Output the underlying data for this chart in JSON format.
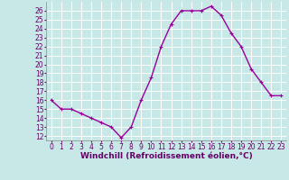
{
  "x": [
    0,
    1,
    2,
    3,
    4,
    5,
    6,
    7,
    8,
    9,
    10,
    11,
    12,
    13,
    14,
    15,
    16,
    17,
    18,
    19,
    20,
    21,
    22,
    23
  ],
  "y": [
    16.0,
    15.0,
    15.0,
    14.5,
    14.0,
    13.5,
    13.0,
    11.8,
    13.0,
    16.0,
    18.5,
    22.0,
    24.5,
    26.0,
    26.0,
    26.0,
    26.5,
    25.5,
    23.5,
    22.0,
    19.5,
    18.0,
    16.5,
    16.5
  ],
  "line_color": "#990099",
  "marker": "+",
  "marker_size": 3,
  "xlim": [
    -0.5,
    23.5
  ],
  "ylim": [
    11.5,
    27
  ],
  "yticks": [
    12,
    13,
    14,
    15,
    16,
    17,
    18,
    19,
    20,
    21,
    22,
    23,
    24,
    25,
    26
  ],
  "xticks": [
    0,
    1,
    2,
    3,
    4,
    5,
    6,
    7,
    8,
    9,
    10,
    11,
    12,
    13,
    14,
    15,
    16,
    17,
    18,
    19,
    20,
    21,
    22,
    23
  ],
  "xlabel": "Windchill (Refroidissement éolien,°C)",
  "background_color": "#c8e8e8",
  "grid_color": "#b0d0d0",
  "tick_label_color": "#660066",
  "axis_label_color": "#660066",
  "font_size_ticks": 5.5,
  "font_size_xlabel": 6.5,
  "line_width": 1.0,
  "marker_edge_width": 0.8
}
